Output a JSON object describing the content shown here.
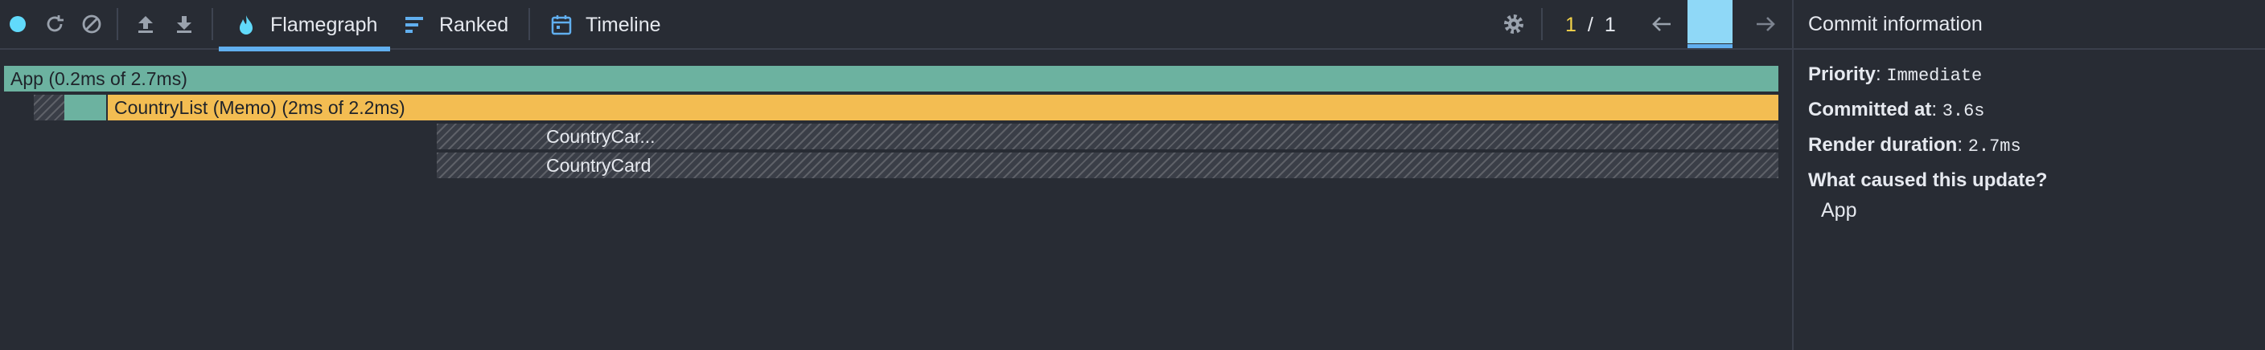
{
  "toolbar": {
    "icons": [
      "record-icon",
      "reload-icon",
      "clear-icon",
      "load-profile-icon",
      "save-profile-icon"
    ],
    "tabs": [
      {
        "label": "Flamegraph",
        "icon": "flame-icon",
        "active": true
      },
      {
        "label": "Ranked",
        "icon": "ranked-icon",
        "active": false
      },
      {
        "label": "Timeline",
        "icon": "calendar-icon",
        "active": false
      }
    ],
    "commit_current": "1",
    "commit_sep": "/",
    "commit_total": "1"
  },
  "flamegraph": {
    "rows": [
      {
        "label": "App (0.2ms of 2.7ms)",
        "color": "#6cb2a0"
      },
      {
        "label": "CountryList (Memo) (2ms of 2.2ms)",
        "color": "#f3bd52"
      },
      {
        "label": "CountryCar...",
        "color": "hatched"
      },
      {
        "label": "CountryCard",
        "color": "hatched"
      }
    ]
  },
  "panel": {
    "header": "Commit information",
    "priority_label": "Priority",
    "priority_value": "Immediate",
    "committed_label": "Committed at",
    "committed_value": "3.6s",
    "duration_label": "Render duration",
    "duration_value": "2.7ms",
    "cause_label": "What caused this update?",
    "cause_value": "App"
  },
  "colors": {
    "background": "#282c34",
    "accent": "#61afef",
    "commit_bar": "#8fd8f7",
    "app_bar": "#6cb2a0",
    "list_bar": "#f3bd52",
    "commit_count": "#f3d34a"
  }
}
